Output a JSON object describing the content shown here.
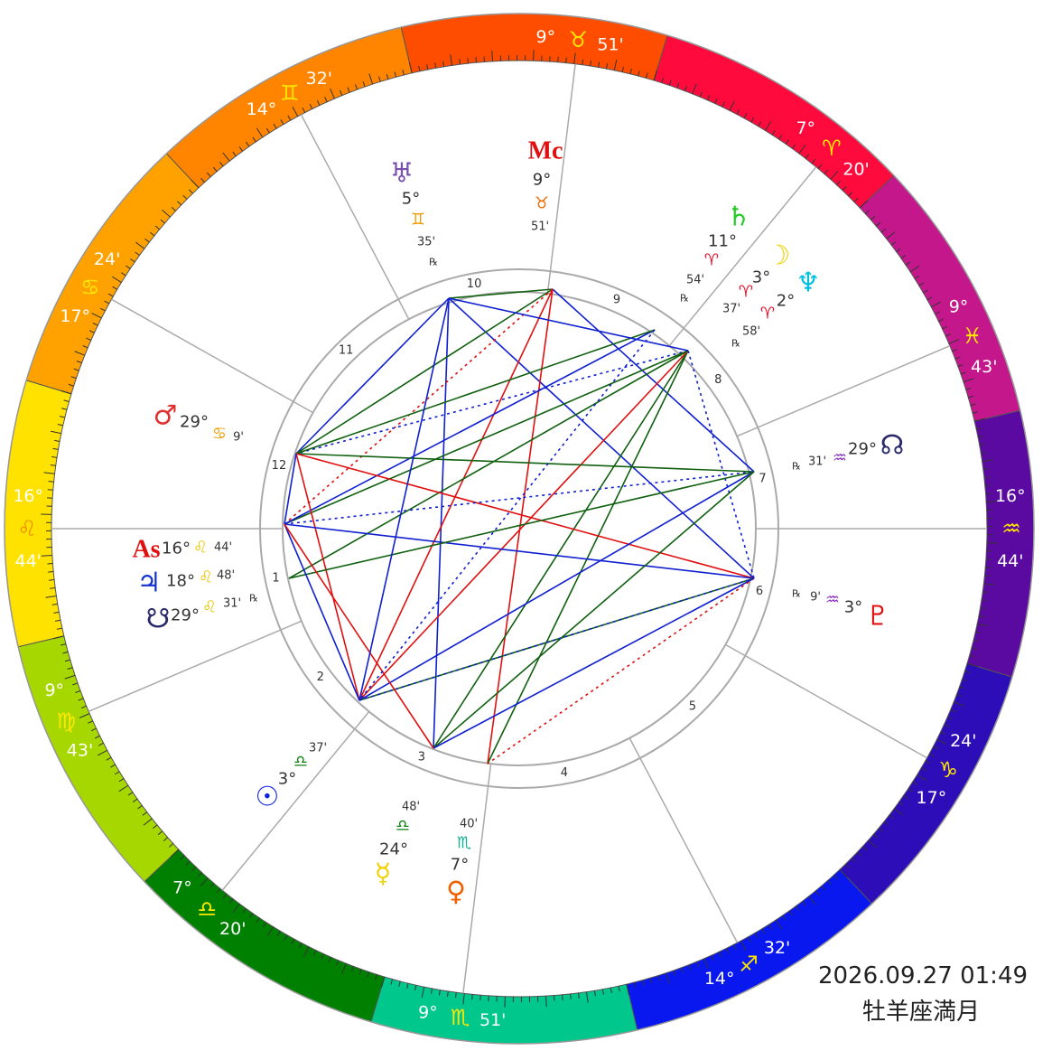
{
  "houses": [
    {
      "number": 1,
      "degree": "16°",
      "sign": "♌",
      "minute": "44'"
    },
    {
      "number": 2,
      "degree": "9°",
      "sign": "♍",
      "minute": "43'"
    },
    {
      "number": 3,
      "degree": "7°",
      "sign": "♎",
      "minute": "20'"
    },
    {
      "number": 4,
      "degree": "9°",
      "sign": "♏",
      "minute": "51'"
    },
    {
      "number": 5,
      "degree": "14°",
      "sign": "♐",
      "minute": "32'"
    },
    {
      "number": 6,
      "degree": "17°",
      "sign": "♑",
      "minute": "24'"
    },
    {
      "number": 7,
      "degree": "16°",
      "sign": "♒",
      "minute": "44'"
    },
    {
      "number": 8,
      "degree": "9°",
      "sign": "♓",
      "minute": "43'"
    },
    {
      "number": 9,
      "degree": "7°",
      "sign": "♈",
      "minute": "20'"
    },
    {
      "number": 10,
      "degree": "9°",
      "sign": "♉",
      "minute": "51'"
    },
    {
      "number": 11,
      "degree": "14°",
      "sign": "♊",
      "minute": "32'"
    },
    {
      "number": 12,
      "degree": "17°",
      "sign": "♋",
      "minute": "24'"
    }
  ],
  "planets": [
    {
      "glyph": "♅",
      "degree": "5°",
      "sign": "♊",
      "minute": "35'",
      "retrograde": "℞"
    },
    {
      "glyph": "Mc",
      "degree": "9°",
      "sign": "♉",
      "minute": "51'"
    },
    {
      "glyph": "♄",
      "degree": "11°",
      "sign": "♈",
      "minute": "54'",
      "retrograde": "℞"
    },
    {
      "glyph": "☽",
      "degree": "3°",
      "sign": "♈",
      "minute": "37'"
    },
    {
      "glyph": "♆",
      "degree": "2°",
      "sign": "♈",
      "minute": "58'",
      "retrograde": "℞"
    },
    {
      "glyph": "☊",
      "degree": "29°",
      "sign": "♒",
      "minute": "31'",
      "retrograde": "℞"
    },
    {
      "glyph": "♇",
      "degree": "3°",
      "sign": "♒",
      "minute": "9'",
      "retrograde": "℞"
    },
    {
      "glyph": "♂",
      "degree": "29°",
      "sign": "♋",
      "minute": "9'"
    },
    {
      "glyph": "As",
      "degree": "16°",
      "sign": "♌",
      "minute": "44'"
    },
    {
      "glyph": "♃",
      "degree": "18°",
      "sign": "♌",
      "minute": "48'"
    },
    {
      "glyph": "☋",
      "degree": "29°",
      "sign": "♌",
      "minute": "31'",
      "retrograde": "℞"
    },
    {
      "glyph": "☉",
      "degree": "3°",
      "sign": "♎",
      "minute": "37'"
    },
    {
      "glyph": "☿",
      "degree": "24°",
      "sign": "♎",
      "minute": "48'"
    },
    {
      "glyph": "♀",
      "degree": "7°",
      "sign": "♏",
      "minute": "40'"
    }
  ],
  "footer": {
    "datetime": "2026.09.27 01:49",
    "caption": "牡羊座満月"
  }
}
